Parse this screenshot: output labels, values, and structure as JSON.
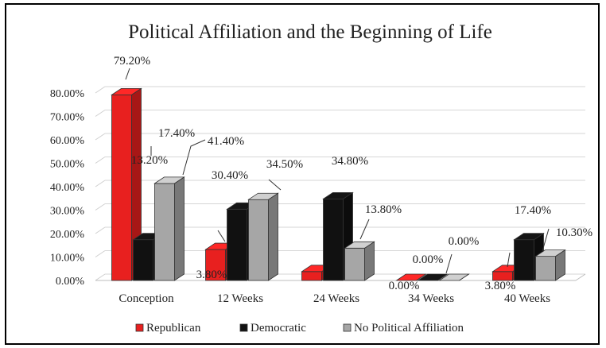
{
  "chart_data": {
    "type": "bar",
    "title": "Political Affiliation and the Beginning of Life",
    "xlabel": "",
    "ylabel": "",
    "categories": [
      "Conception",
      "12 Weeks",
      "24 Weeks",
      "34 Weeks",
      "40 Weeks"
    ],
    "ylim": [
      0,
      80
    ],
    "yticks": [
      "0.00%",
      "10.00%",
      "20.00%",
      "30.00%",
      "40.00%",
      "50.00%",
      "60.00%",
      "70.00%",
      "80.00%"
    ],
    "grid": true,
    "legend_position": "bottom",
    "series": [
      {
        "name": "Republican",
        "color": "#e8201f",
        "values": [
          79.2,
          13.2,
          3.8,
          0.0,
          3.8
        ],
        "labels": [
          "79.20%",
          "13.20%",
          "3.80%",
          "0.00%",
          "3.80%"
        ]
      },
      {
        "name": "Democratic",
        "color": "#111111",
        "values": [
          17.4,
          30.4,
          34.8,
          0.0,
          17.4
        ],
        "labels": [
          "17.40%",
          "30.40%",
          "34.80%",
          "0.00%",
          "17.40%"
        ]
      },
      {
        "name": "No Political Affiliation",
        "color": "#a6a6a6",
        "values": [
          41.4,
          34.5,
          13.8,
          0.0,
          10.3
        ],
        "labels": [
          "41.40%",
          "34.50%",
          "13.80%",
          "0.00%",
          "10.30%"
        ]
      }
    ]
  }
}
